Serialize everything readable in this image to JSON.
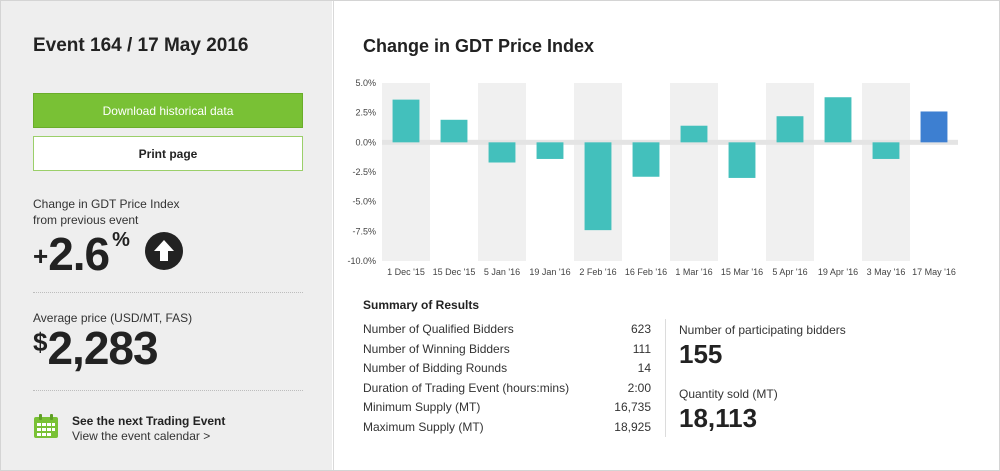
{
  "left": {
    "event_title": "Event 164 / 17 May 2016",
    "download_label": "Download historical data",
    "print_label": "Print page",
    "change_label_1": "Change in GDT Price Index",
    "change_label_2": "from previous event",
    "change_sign": "+",
    "change_value": "2.6",
    "change_unit": "%",
    "avg_label": "Average price (USD/MT, FAS)",
    "avg_currency": "$",
    "avg_value": "2,283",
    "next_title": "See the next Trading Event",
    "next_link": "View the event calendar >"
  },
  "colors": {
    "accent_green": "#79c135",
    "bar_teal": "#43c0bc",
    "bar_latest": "#3d7fd1"
  },
  "chart_title": "Change in GDT Price Index",
  "chart_data": {
    "type": "bar",
    "title": "Change in GDT Price Index",
    "categories": [
      "1 Dec '15",
      "15 Dec '15",
      "5 Jan '16",
      "19 Jan '16",
      "2 Feb '16",
      "16 Feb '16",
      "1 Mar '16",
      "15 Mar '16",
      "5 Apr '16",
      "19 Apr '16",
      "3 May '16",
      "17 May '16"
    ],
    "values": [
      3.6,
      1.9,
      -1.7,
      -1.4,
      -7.4,
      -2.9,
      1.4,
      -3.0,
      2.2,
      3.8,
      -1.4,
      2.6
    ],
    "yticks": [
      "5.0%",
      "2.5%",
      "0.0%",
      "-2.5%",
      "-5.0%",
      "-7.5%",
      "-10.0%"
    ],
    "ylim": [
      -10,
      5
    ],
    "grid": false
  },
  "summary": {
    "title": "Summary of Results",
    "rows": [
      {
        "label": "Number of Qualified Bidders",
        "value": "623"
      },
      {
        "label": "Number of Winning Bidders",
        "value": "111"
      },
      {
        "label": "Number of Bidding Rounds",
        "value": "14"
      },
      {
        "label": "Duration of Trading Event (hours:mins)",
        "value": "2:00"
      },
      {
        "label": "Minimum Supply (MT)",
        "value": "16,735"
      },
      {
        "label": "Maximum Supply (MT)",
        "value": "18,925"
      }
    ],
    "participating_label": "Number of participating bidders",
    "participating_value": "155",
    "sold_label": "Quantity sold (MT)",
    "sold_value": "18,113"
  }
}
